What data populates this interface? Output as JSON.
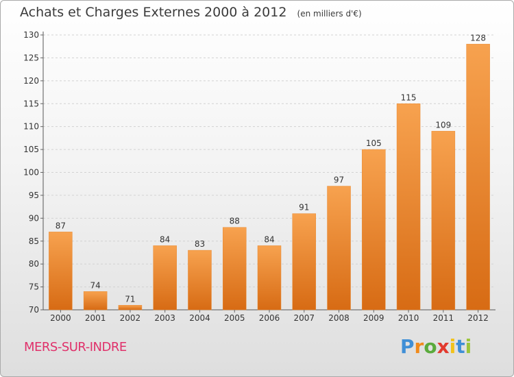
{
  "chart_data": {
    "type": "bar",
    "title": "Achats et Charges Externes 2000 à 2012",
    "unit": "(en milliers d'€)",
    "categories": [
      "2000",
      "2001",
      "2002",
      "2003",
      "2004",
      "2005",
      "2006",
      "2007",
      "2008",
      "2009",
      "2010",
      "2011",
      "2012"
    ],
    "values": [
      87,
      74,
      71,
      84,
      83,
      88,
      84,
      91,
      97,
      105,
      115,
      109,
      128
    ],
    "ylim": [
      70,
      130
    ],
    "yticks": [
      70,
      75,
      80,
      85,
      90,
      95,
      100,
      105,
      110,
      115,
      120,
      125,
      130
    ],
    "xlabel": "",
    "ylabel": "",
    "grid": true,
    "bar_color_top": "#f7a24f",
    "bar_color_bottom": "#d76b14"
  },
  "location": "MERS-SUR-INDRE",
  "brand": {
    "letters": [
      "P",
      "r",
      "o",
      "x",
      "i",
      "t",
      "i"
    ],
    "colors": [
      "#3f8fd6",
      "#f08a1c",
      "#5aaa3c",
      "#e23a2e",
      "#f2c21b",
      "#3f8fd6",
      "#9bc43a"
    ]
  }
}
